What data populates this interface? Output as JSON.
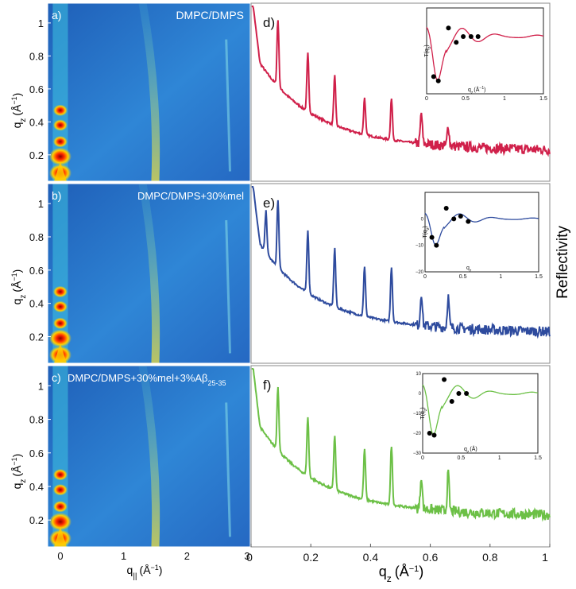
{
  "figure": {
    "axis_labels": {
      "qz_left": "q",
      "qz_left_sub": "z",
      "qz_left_unit": "(Å",
      "qz_left_exp": "−1",
      "qz_left_close": ")",
      "qpar": "q",
      "qpar_sub": "||",
      "qpar_unit": "(Å",
      "qpar_exp": "−1",
      "qpar_close": ")",
      "qz_bottom": "q",
      "qz_bottom_sub": "z",
      "qz_bottom_unit": "(Å",
      "qz_bottom_exp": "−1",
      "qz_bottom_close": ")",
      "reflectivity": "Reflectivity"
    },
    "colors": {
      "d": "#d0204a",
      "e": "#2e4b9e",
      "f": "#6cc046",
      "map_bg": "#2a74c8"
    }
  },
  "chart_data": [
    {
      "panel": "a",
      "type": "heatmap",
      "letter": "a)",
      "title": "DMPC/DMPS",
      "title_sub": "",
      "x_ticks": [
        "0",
        "1",
        "2",
        "3"
      ],
      "y_ticks": [
        "0.2",
        "0.4",
        "0.6",
        "0.8",
        "1"
      ],
      "xlim": [
        -0.2,
        3.0
      ],
      "ylim": [
        0.04,
        1.12
      ]
    },
    {
      "panel": "b",
      "type": "heatmap",
      "letter": "b)",
      "title": "DMPC/DMPS+30%mel",
      "title_sub": "",
      "x_ticks": [
        "0",
        "1",
        "2",
        "3"
      ],
      "y_ticks": [
        "0.2",
        "0.4",
        "0.6",
        "0.8",
        "1"
      ],
      "xlim": [
        -0.2,
        3.0
      ],
      "ylim": [
        0.04,
        1.12
      ]
    },
    {
      "panel": "c",
      "type": "heatmap",
      "letter": "c)",
      "title": "DMPC/DMPS+30%mel+3%Aβ",
      "title_sub": "25-35",
      "x_ticks": [
        "0",
        "1",
        "2",
        "3"
      ],
      "y_ticks": [
        "0.2",
        "0.4",
        "0.6",
        "0.8",
        "1"
      ],
      "xlim": [
        -0.2,
        3.0
      ],
      "ylim": [
        0.04,
        1.12
      ]
    },
    {
      "panel": "d",
      "type": "line",
      "letter": "d)",
      "peaks_qz": [
        0.09,
        0.19,
        0.28,
        0.38,
        0.47,
        0.57,
        0.66
      ],
      "peak_heights": [
        0.55,
        0.45,
        0.35,
        0.2,
        0.25,
        0.12,
        0.0
      ],
      "xlim": [
        0,
        1
      ],
      "inset": {
        "xlim": [
          0,
          1.5
        ],
        "ylim": [
          -20,
          10
        ],
        "x_ticks": [
          "0",
          "0.5",
          "1",
          "1.5"
        ],
        "y_ticks": [],
        "ylabel": "T(q",
        "ylabel_sub": "z",
        "ylabel_close": ")",
        "xlabel": "q",
        "xlabel_sub": "z",
        "xlabel_unit": "(Å",
        "xlabel_exp": "−1",
        "xlabel_close": ")",
        "points": [
          [
            0.09,
            -14
          ],
          [
            0.15,
            -15.5
          ],
          [
            0.28,
            3
          ],
          [
            0.38,
            -2
          ],
          [
            0.47,
            0
          ],
          [
            0.57,
            0
          ],
          [
            0.66,
            0
          ]
        ]
      }
    },
    {
      "panel": "e",
      "type": "line",
      "letter": "e)",
      "peaks_qz": [
        0.05,
        0.09,
        0.19,
        0.28,
        0.38,
        0.47,
        0.57,
        0.66
      ],
      "peak_heights": [
        0.25,
        0.55,
        0.5,
        0.45,
        0.35,
        0.4,
        0.15,
        0.12
      ],
      "xlim": [
        0,
        1
      ],
      "inset": {
        "xlim": [
          0,
          1.5
        ],
        "ylim": [
          -20,
          10
        ],
        "x_ticks": [
          "0",
          "0.5",
          "1",
          "1.5"
        ],
        "y_ticks": [
          "0",
          "−10",
          "−20"
        ],
        "ylabel": "T(q",
        "ylabel_sub": "z",
        "ylabel_close": ")",
        "xlabel": "q",
        "xlabel_sub": "z",
        "xlabel_unit": "",
        "xlabel_exp": "",
        "xlabel_close": "",
        "points": [
          [
            0.09,
            -7
          ],
          [
            0.15,
            -10
          ],
          [
            0.28,
            4
          ],
          [
            0.38,
            0
          ],
          [
            0.47,
            1
          ],
          [
            0.57,
            -1
          ]
        ]
      }
    },
    {
      "panel": "f",
      "type": "line",
      "letter": "f)",
      "peaks_qz": [
        0.09,
        0.19,
        0.28,
        0.38,
        0.47,
        0.57,
        0.66
      ],
      "peak_heights": [
        0.5,
        0.45,
        0.4,
        0.35,
        0.45,
        0.15,
        0.2
      ],
      "xlim": [
        0,
        1
      ],
      "inset": {
        "xlim": [
          0,
          1.5
        ],
        "ylim": [
          -30,
          10
        ],
        "x_ticks": [
          "0",
          "0.5",
          "1",
          "1.5"
        ],
        "y_ticks": [
          "10",
          "0",
          "−10",
          "−20",
          "−30"
        ],
        "ylabel": "T(q",
        "ylabel_sub": "z",
        "ylabel_close": ")",
        "xlabel": "q",
        "xlabel_sub": "z",
        "xlabel_unit": "(Å",
        "xlabel_exp": "",
        "xlabel_close": ")",
        "points": [
          [
            0.09,
            -20
          ],
          [
            0.15,
            -21
          ],
          [
            0.28,
            7
          ],
          [
            0.38,
            -4
          ],
          [
            0.47,
            0
          ],
          [
            0.57,
            0
          ]
        ]
      }
    }
  ],
  "right_x_ticks": [
    "0",
    "0.2",
    "0.4",
    "0.6",
    "0.8",
    "1"
  ]
}
